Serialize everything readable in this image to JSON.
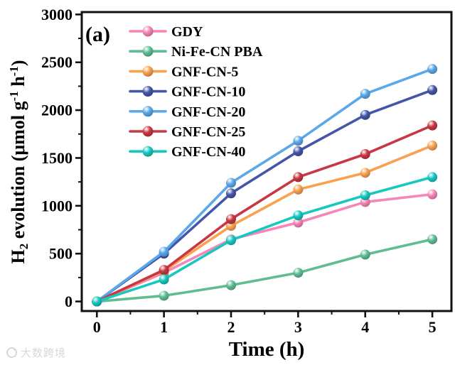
{
  "panel_label": "(a)",
  "watermark": {
    "text": "大数跨境",
    "logo": "swirl-logo"
  },
  "chart_data": {
    "type": "line",
    "title": "",
    "xlabel": "Time (h)",
    "ylabel": "H2 evolution (umol g-1 h-1)",
    "ylabel_parts": [
      {
        "text": "H"
      },
      {
        "text": "2",
        "script": "sub"
      },
      {
        "text": " evolution (μmol g"
      },
      {
        "text": "-1",
        "script": "sup"
      },
      {
        "text": " h"
      },
      {
        "text": "-1",
        "script": "sup"
      },
      {
        "text": ")"
      }
    ],
    "x": [
      0,
      1,
      2,
      3,
      4,
      5
    ],
    "x_ticks": [
      0,
      1,
      2,
      3,
      4,
      5
    ],
    "y_ticks": [
      0,
      500,
      1000,
      1500,
      2000,
      2500,
      3000
    ],
    "x_minor_step": 0.5,
    "y_minor_step": 250,
    "xlim": [
      -0.225,
      5.285
    ],
    "ylim": [
      -100,
      3025
    ],
    "grid": false,
    "legend_position": "top-left",
    "marker": "sphere",
    "axis_color": "#111111",
    "series": [
      {
        "name": "GDY",
        "color": "#F685B8",
        "values": [
          0,
          300,
          650,
          825,
          1040,
          1120
        ]
      },
      {
        "name": "Ni-Fe-CN PBA",
        "color": "#5FBD94",
        "values": [
          0,
          60,
          170,
          300,
          490,
          650
        ]
      },
      {
        "name": "GNF-CN-5",
        "color": "#F9A14F",
        "values": [
          0,
          320,
          790,
          1170,
          1345,
          1630
        ]
      },
      {
        "name": "GNF-CN-10",
        "color": "#4456A7",
        "values": [
          0,
          500,
          1130,
          1570,
          1950,
          2210
        ]
      },
      {
        "name": "GNF-CN-20",
        "color": "#5BA8E8",
        "values": [
          0,
          520,
          1240,
          1680,
          2170,
          2430
        ]
      },
      {
        "name": "GNF-CN-25",
        "color": "#C83742",
        "values": [
          0,
          330,
          860,
          1300,
          1540,
          1840
        ]
      },
      {
        "name": "GNF-CN-40",
        "color": "#16C8C0",
        "values": [
          0,
          230,
          640,
          900,
          1110,
          1300
        ]
      }
    ]
  }
}
